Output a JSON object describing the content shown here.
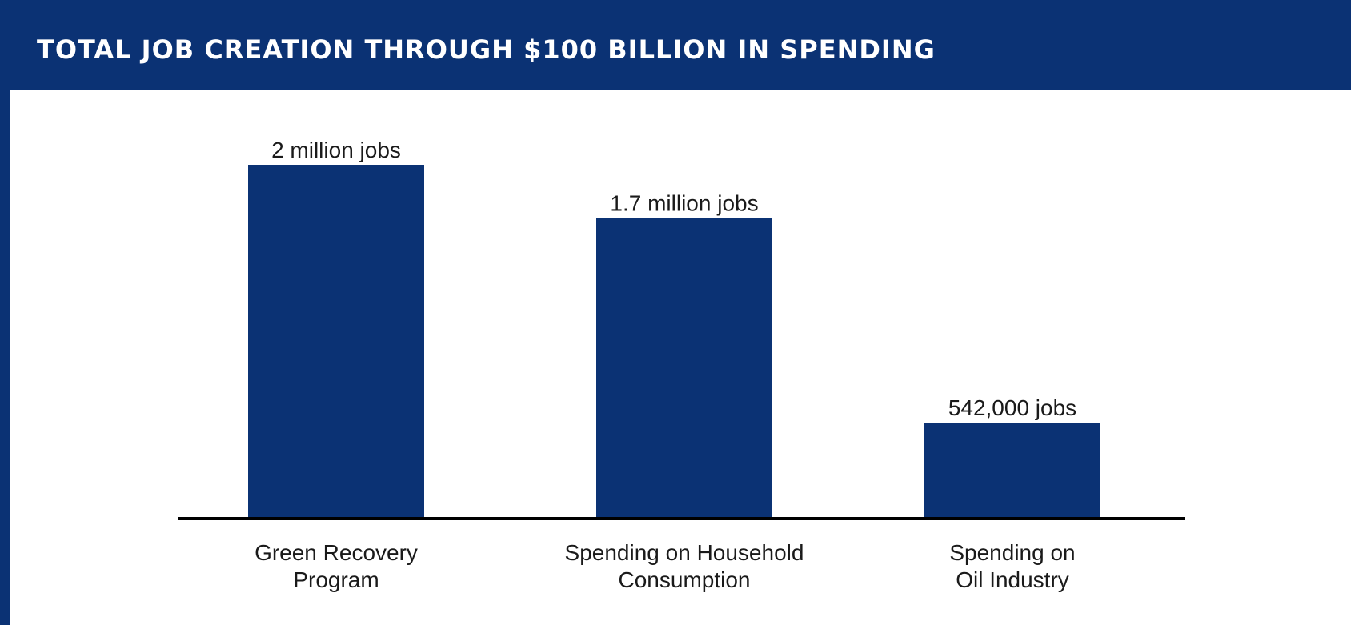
{
  "chart_data": {
    "type": "bar",
    "title": "TOTAL JOB CREATION THROUGH $100 BILLION IN SPENDING",
    "xlabel": "",
    "ylabel": "",
    "categories": [
      "Green Recovery Program",
      "Spending on Household Consumption",
      "Spending on Oil Industry"
    ],
    "category_lines": [
      [
        "Green Recovery",
        "Program"
      ],
      [
        "Spending on Household",
        "Consumption"
      ],
      [
        "Spending on",
        "Oil Industry"
      ]
    ],
    "values": [
      2000000,
      1700000,
      542000
    ],
    "data_labels": [
      "2 million jobs",
      "1.7 million jobs",
      "542,000 jobs"
    ],
    "ylim": [
      0,
      2000000
    ],
    "grid": false,
    "legend": "none"
  },
  "colors": {
    "header": "#0b3274",
    "bar": "#0b3274",
    "axis": "#000000"
  }
}
